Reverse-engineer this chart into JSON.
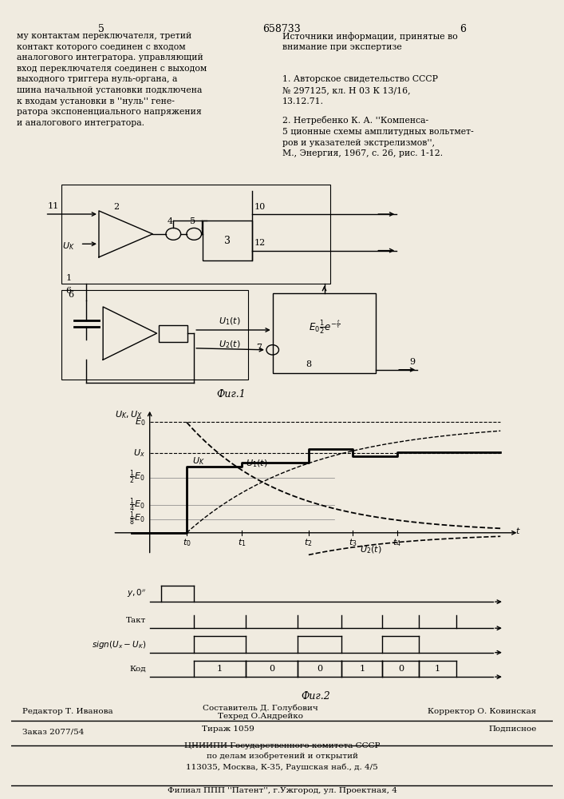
{
  "title": "658733",
  "page_left": "5",
  "page_right": "6",
  "bg_color": "#f0ebe0",
  "left_text": "му контактам переключателя, третий\nконтакт которого соединен с входом\nаналогового интегратора. управляющий\nвход переключателя соединен с выходом\nвыходного триггера нуль-органа, а\nшина начальной установки подключена\nк входам установки в ''нуль'' гене-\nратора экспоненциального напряжения\nи аналогового интегратора.",
  "right_text_title": "Источники информации, принятые во\nвнимание при экспертизе",
  "right_text_1": "1. Авторское свидетельство СССР\n№ 297125, кл. Н 03 К 13/16,\n13.12.71.",
  "right_text_2": "2. Нетребенко К. А. ''Компенса-\n5 ционные схемы амплитудных вольтмет-\nров и указателей экстрелизмов'',\nМ., Энергия, 1967, с. 26, рис. 1-12.",
  "fig1_label": "Фиг.1",
  "fig2_label": "Фиг.2",
  "footer_left": "Редактор Т. Иванова",
  "footer_center1": "Составитель Д. Голубович",
  "footer_center2": "Техред О.Андрейко",
  "footer_right": "Корректор О. Ковинская",
  "footer_order": "Заказ 2077/54",
  "footer_tirazh": "Тираж 1059",
  "footer_podpisnoe": "Подписное",
  "footer_tsniipI": "ЦНИИПИ Государственного комитета СССР\nпо делам изобретений и открытий\n113035, Москва, К-35, Раушская наб., д. 4/5",
  "footer_filial": "Филиал ППП ''Патент'', г.Ужгород, ул. Проектная, 4"
}
